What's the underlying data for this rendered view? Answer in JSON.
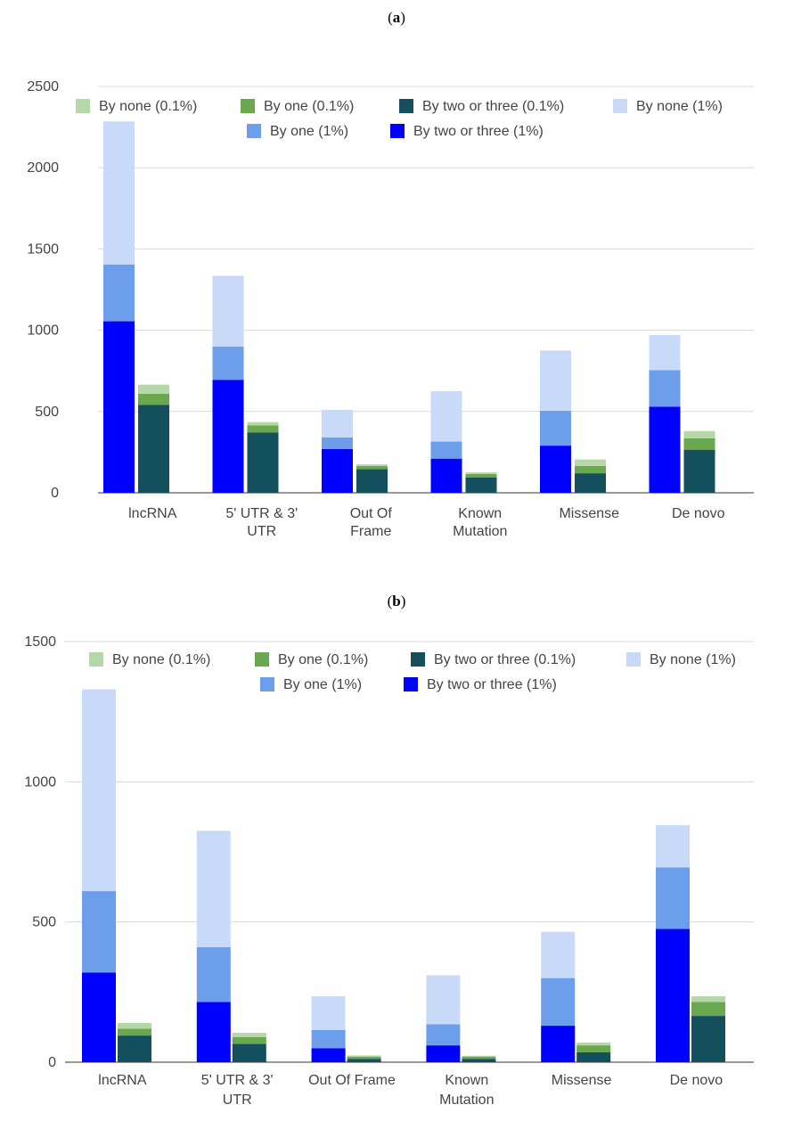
{
  "panels": [
    {
      "label_open": "(",
      "label_letter": "a",
      "label_close": ")"
    },
    {
      "label_open": "(",
      "label_letter": "b",
      "label_close": ")"
    }
  ],
  "legend": [
    {
      "name": "By none (0.1%)",
      "color": "#b6d7a8"
    },
    {
      "name": "By one (0.1%)",
      "color": "#6aa84f"
    },
    {
      "name": "By two or three (0.1%)",
      "color": "#134f5c"
    },
    {
      "name": "By none (1%)",
      "color": "#c9daf8"
    },
    {
      "name": "By one (1%)",
      "color": "#6d9eeb"
    },
    {
      "name": "By two or three (1%)",
      "color": "#0000ff"
    }
  ],
  "chart_data": [
    {
      "type": "bar",
      "stacked": true,
      "title": "",
      "xlabel": "",
      "ylabel": "",
      "ylim": [
        0,
        2500
      ],
      "yticks": [
        0,
        500,
        1000,
        1500,
        2000,
        2500
      ],
      "grid": true,
      "legend_position": "top",
      "categories": [
        [
          "lncRNA"
        ],
        [
          "5' UTR & 3'",
          "UTR"
        ],
        [
          "Out Of",
          "Frame"
        ],
        [
          "Known",
          "Mutation"
        ],
        [
          "Missense"
        ],
        [
          "De novo"
        ]
      ],
      "stacks": [
        {
          "name": "1%",
          "series": [
            {
              "name": "By two or three (1%)",
              "color": "#0000ff",
              "values": [
                1055,
                695,
                270,
                210,
                290,
                530
              ]
            },
            {
              "name": "By one (1%)",
              "color": "#6d9eeb",
              "values": [
                350,
                205,
                70,
                105,
                215,
                225
              ]
            },
            {
              "name": "By none (1%)",
              "color": "#c9daf8",
              "values": [
                880,
                435,
                170,
                310,
                370,
                215
              ]
            }
          ]
        },
        {
          "name": "0.1%",
          "series": [
            {
              "name": "By two or three (0.1%)",
              "color": "#134f5c",
              "values": [
                540,
                370,
                145,
                95,
                120,
                265
              ]
            },
            {
              "name": "By one (0.1%)",
              "color": "#6aa84f",
              "values": [
                70,
                45,
                20,
                20,
                45,
                70
              ]
            },
            {
              "name": "By none (0.1%)",
              "color": "#b6d7a8",
              "values": [
                55,
                20,
                10,
                10,
                40,
                45
              ]
            }
          ]
        }
      ]
    },
    {
      "type": "bar",
      "stacked": true,
      "title": "",
      "xlabel": "",
      "ylabel": "",
      "ylim": [
        0,
        1500
      ],
      "yticks": [
        0,
        500,
        1000,
        1500
      ],
      "grid": true,
      "legend_position": "top",
      "categories": [
        [
          "lncRNA"
        ],
        [
          "5' UTR & 3'",
          "UTR"
        ],
        [
          "Out Of Frame"
        ],
        [
          "Known",
          "Mutation"
        ],
        [
          "Missense"
        ],
        [
          "De novo"
        ]
      ],
      "stacks": [
        {
          "name": "1%",
          "series": [
            {
              "name": "By two or three (1%)",
              "color": "#0000ff",
              "values": [
                320,
                215,
                50,
                60,
                130,
                475
              ]
            },
            {
              "name": "By one (1%)",
              "color": "#6d9eeb",
              "values": [
                290,
                195,
                65,
                75,
                170,
                220
              ]
            },
            {
              "name": "By none (1%)",
              "color": "#c9daf8",
              "values": [
                720,
                415,
                120,
                175,
                165,
                150
              ]
            }
          ]
        },
        {
          "name": "0.1%",
          "series": [
            {
              "name": "By two or three (0.1%)",
              "color": "#134f5c",
              "values": [
                95,
                65,
                12,
                12,
                35,
                165
              ]
            },
            {
              "name": "By one (0.1%)",
              "color": "#6aa84f",
              "values": [
                25,
                25,
                7,
                7,
                25,
                50
              ]
            },
            {
              "name": "By none (0.1%)",
              "color": "#b6d7a8",
              "values": [
                20,
                15,
                5,
                4,
                10,
                20
              ]
            }
          ]
        }
      ]
    }
  ]
}
